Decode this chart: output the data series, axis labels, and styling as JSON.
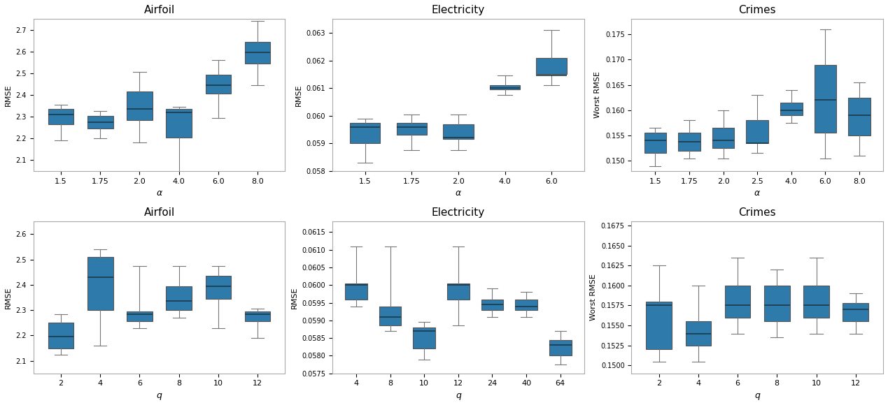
{
  "box_color": "#2e7aab",
  "median_color": "#1a3a4a",
  "whisker_color": "#777777",
  "cap_color": "#777777",
  "background_color": "#ffffff",
  "upper_row": {
    "airfoil": {
      "title": "Airfoil",
      "xlabel": "α",
      "ylabel": "RMSE",
      "categories": [
        "1.5",
        "1.75",
        "2.0",
        "4.0",
        "6.0",
        "8.0"
      ],
      "ylim": [
        2.05,
        2.75
      ],
      "yticks": [
        2.1,
        2.2,
        2.3,
        2.4,
        2.5,
        2.6,
        2.7
      ],
      "boxes": [
        {
          "whislo": 2.19,
          "q1": 2.265,
          "med": 2.31,
          "q3": 2.335,
          "whishi": 2.355
        },
        {
          "whislo": 2.2,
          "q1": 2.245,
          "med": 2.275,
          "q3": 2.305,
          "whishi": 2.325
        },
        {
          "whislo": 2.18,
          "q1": 2.285,
          "med": 2.335,
          "q3": 2.415,
          "whishi": 2.505
        },
        {
          "whislo": 2.04,
          "q1": 2.205,
          "med": 2.32,
          "q3": 2.335,
          "whishi": 2.345
        },
        {
          "whislo": 2.295,
          "q1": 2.405,
          "med": 2.445,
          "q3": 2.495,
          "whishi": 2.56
        },
        {
          "whislo": 2.445,
          "q1": 2.545,
          "med": 2.595,
          "q3": 2.645,
          "whishi": 2.74
        }
      ]
    },
    "electricity": {
      "title": "Electricity",
      "xlabel": "α",
      "ylabel": "RMSE",
      "categories": [
        "1.5",
        "1.75",
        "2.0",
        "4.0",
        "6.0"
      ],
      "ylim": [
        0.058,
        0.0635
      ],
      "yticks": [
        0.058,
        0.059,
        0.06,
        0.061,
        0.062,
        0.063
      ],
      "boxes": [
        {
          "whislo": 0.0583,
          "q1": 0.059,
          "med": 0.0596,
          "q3": 0.05975,
          "whishi": 0.0599
        },
        {
          "whislo": 0.05875,
          "q1": 0.0593,
          "med": 0.0596,
          "q3": 0.05975,
          "whishi": 0.06005
        },
        {
          "whislo": 0.05875,
          "q1": 0.05915,
          "med": 0.0592,
          "q3": 0.0597,
          "whishi": 0.06005
        },
        {
          "whislo": 0.06075,
          "q1": 0.06095,
          "med": 0.061,
          "q3": 0.0611,
          "whishi": 0.06145
        },
        {
          "whislo": 0.0611,
          "q1": 0.0615,
          "med": 0.06145,
          "q3": 0.0621,
          "whishi": 0.0631
        }
      ]
    },
    "crimes": {
      "title": "Crimes",
      "xlabel": "α",
      "ylabel": "Worst RMSE",
      "categories": [
        "1.5",
        "1.75",
        "2.0",
        "2.5",
        "4.0",
        "6.0",
        "8.0"
      ],
      "ylim": [
        0.148,
        0.178
      ],
      "yticks": [
        0.15,
        0.155,
        0.16,
        0.165,
        0.17,
        0.175
      ],
      "boxes": [
        {
          "whislo": 0.149,
          "q1": 0.1515,
          "med": 0.154,
          "q3": 0.1555,
          "whishi": 0.1565
        },
        {
          "whislo": 0.1505,
          "q1": 0.152,
          "med": 0.1538,
          "q3": 0.1555,
          "whishi": 0.158
        },
        {
          "whislo": 0.1505,
          "q1": 0.1525,
          "med": 0.154,
          "q3": 0.1565,
          "whishi": 0.16
        },
        {
          "whislo": 0.1515,
          "q1": 0.1535,
          "med": 0.1535,
          "q3": 0.158,
          "whishi": 0.163
        },
        {
          "whislo": 0.1575,
          "q1": 0.159,
          "med": 0.16,
          "q3": 0.1615,
          "whishi": 0.164
        },
        {
          "whislo": 0.1505,
          "q1": 0.1555,
          "med": 0.162,
          "q3": 0.169,
          "whishi": 0.176
        },
        {
          "whislo": 0.151,
          "q1": 0.155,
          "med": 0.159,
          "q3": 0.1625,
          "whishi": 0.1655
        }
      ]
    }
  },
  "lower_row": {
    "airfoil": {
      "title": "Airfoil",
      "xlabel": "q",
      "ylabel": "RMSE",
      "categories": [
        "2",
        "4",
        "6",
        "8",
        "10",
        "12"
      ],
      "ylim": [
        2.05,
        2.65
      ],
      "yticks": [
        2.1,
        2.2,
        2.3,
        2.4,
        2.5,
        2.6
      ],
      "boxes": [
        {
          "whislo": 2.125,
          "q1": 2.15,
          "med": 2.195,
          "q3": 2.25,
          "whishi": 2.285
        },
        {
          "whislo": 2.16,
          "q1": 2.3,
          "med": 2.43,
          "q3": 2.51,
          "whishi": 2.54
        },
        {
          "whislo": 2.23,
          "q1": 2.255,
          "med": 2.285,
          "q3": 2.295,
          "whishi": 2.475
        },
        {
          "whislo": 2.27,
          "q1": 2.3,
          "med": 2.335,
          "q3": 2.395,
          "whishi": 2.475
        },
        {
          "whislo": 2.23,
          "q1": 2.345,
          "med": 2.395,
          "q3": 2.435,
          "whishi": 2.475
        },
        {
          "whislo": 2.19,
          "q1": 2.255,
          "med": 2.285,
          "q3": 2.295,
          "whishi": 2.305
        }
      ]
    },
    "electricity": {
      "title": "Electricity",
      "xlabel": "q",
      "ylabel": "RMSE",
      "categories": [
        "4",
        "8",
        "10",
        "12",
        "24",
        "40",
        "64"
      ],
      "ylim": [
        0.0575,
        0.0618
      ],
      "yticks": [
        0.0575,
        0.058,
        0.0585,
        0.059,
        0.0595,
        0.06,
        0.0605,
        0.061,
        0.0615
      ],
      "boxes": [
        {
          "whislo": 0.0594,
          "q1": 0.0596,
          "med": 0.06,
          "q3": 0.06005,
          "whishi": 0.0611
        },
        {
          "whislo": 0.0587,
          "q1": 0.05885,
          "med": 0.0591,
          "q3": 0.0594,
          "whishi": 0.0611
        },
        {
          "whislo": 0.0579,
          "q1": 0.0582,
          "med": 0.0587,
          "q3": 0.0588,
          "whishi": 0.05895
        },
        {
          "whislo": 0.05885,
          "q1": 0.0596,
          "med": 0.06,
          "q3": 0.06005,
          "whishi": 0.0611
        },
        {
          "whislo": 0.0591,
          "q1": 0.0593,
          "med": 0.05945,
          "q3": 0.0596,
          "whishi": 0.0599
        },
        {
          "whislo": 0.0591,
          "q1": 0.0593,
          "med": 0.0594,
          "q3": 0.0596,
          "whishi": 0.0598
        },
        {
          "whislo": 0.05775,
          "q1": 0.058,
          "med": 0.0583,
          "q3": 0.05845,
          "whishi": 0.0587
        }
      ]
    },
    "crimes": {
      "title": "Crimes",
      "xlabel": "q",
      "ylabel": "Worst RMSE",
      "categories": [
        "2",
        "4",
        "6",
        "8",
        "10",
        "12"
      ],
      "ylim": [
        0.149,
        0.168
      ],
      "yticks": [
        0.15,
        0.1525,
        0.155,
        0.1575,
        0.16,
        0.1625,
        0.165
      ],
      "boxes": [
        {
          "whislo": 0.1505,
          "q1": 0.152,
          "med": 0.1575,
          "q3": 0.158,
          "whishi": 0.1625
        },
        {
          "whislo": 0.1505,
          "q1": 0.1525,
          "med": 0.154,
          "q3": 0.1555,
          "whishi": 0.16
        },
        {
          "whislo": 0.154,
          "q1": 0.156,
          "med": 0.1575,
          "q3": 0.16,
          "whishi": 0.1635
        },
        {
          "whislo": 0.1535,
          "q1": 0.1555,
          "med": 0.1575,
          "q3": 0.16,
          "whishi": 0.162
        },
        {
          "whislo": 0.154,
          "q1": 0.156,
          "med": 0.1575,
          "q3": 0.16,
          "whishi": 0.1635
        },
        {
          "whislo": 0.154,
          "q1": 0.1555,
          "med": 0.157,
          "q3": 0.1578,
          "whishi": 0.159
        }
      ]
    }
  }
}
